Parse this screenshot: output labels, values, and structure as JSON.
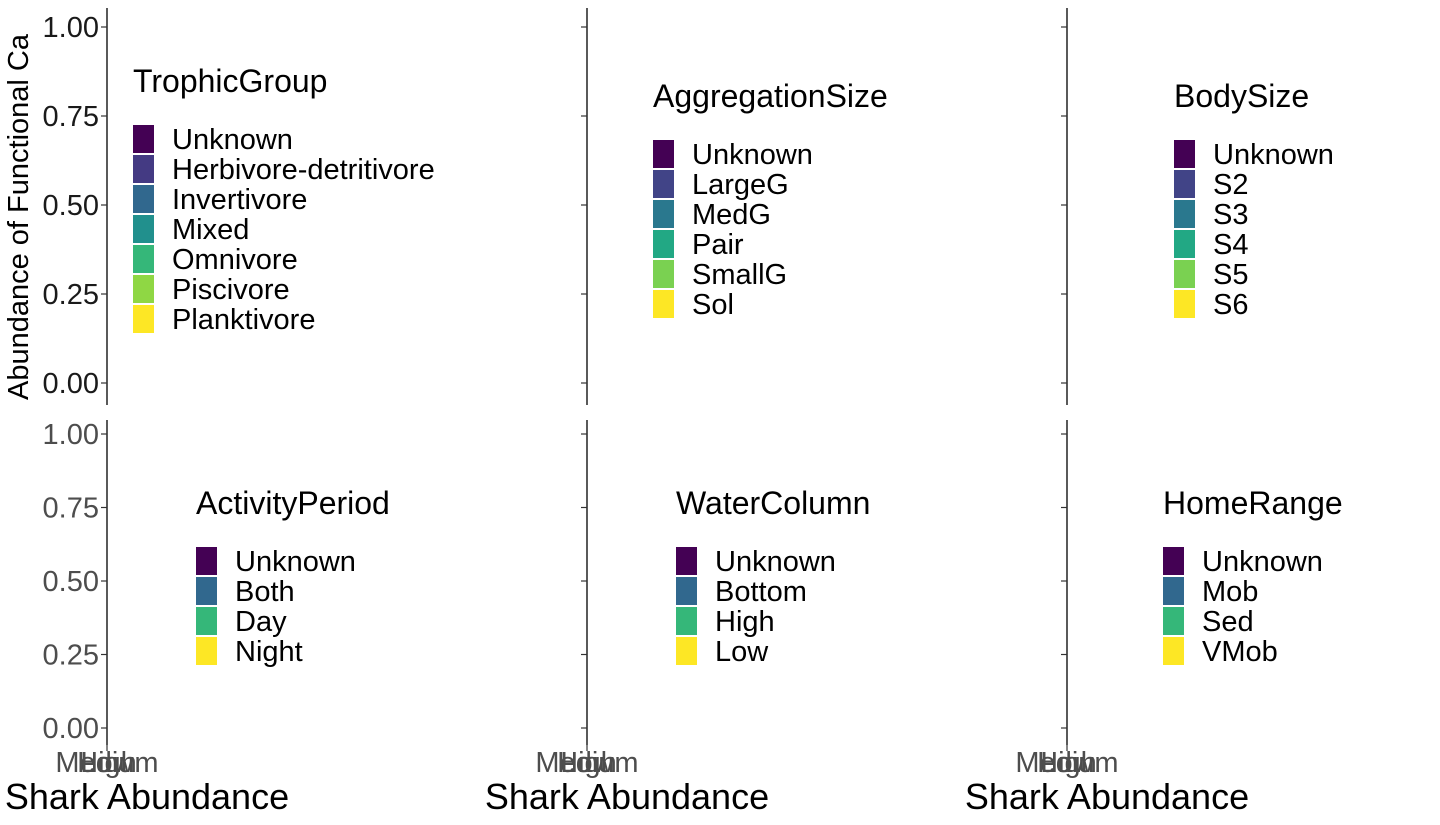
{
  "chart_data": {
    "type": "bar",
    "layout": "facet-grid 2 rows x 3 columns, stacked proportion bars (no bars visible)",
    "ylabel": "Abundance of Functional Ca",
    "y_ticks": [
      "0.00",
      "0.25",
      "0.50",
      "0.75",
      "1.00"
    ],
    "ylim": [
      0,
      1
    ],
    "x_categories": [
      "Medium",
      "High",
      "Low"
    ],
    "xlabel": "Shark Abundance",
    "panels": [
      {
        "legend_title": "TrophicGroup",
        "legend": [
          {
            "label": "Unknown",
            "color": "#440154"
          },
          {
            "label": "Herbivore-detritivore",
            "color": "#443a83"
          },
          {
            "label": "Invertivore",
            "color": "#31688e"
          },
          {
            "label": "Mixed",
            "color": "#21908d"
          },
          {
            "label": "Omnivore",
            "color": "#35b779"
          },
          {
            "label": "Piscivore",
            "color": "#8fd744"
          },
          {
            "label": "Planktivore",
            "color": "#fde725"
          }
        ]
      },
      {
        "legend_title": "AggregationSize",
        "legend": [
          {
            "label": "Unknown",
            "color": "#440154"
          },
          {
            "label": "LargeG",
            "color": "#414487"
          },
          {
            "label": "MedG",
            "color": "#2a788e"
          },
          {
            "label": "Pair",
            "color": "#22a884"
          },
          {
            "label": "SmallG",
            "color": "#7ad151"
          },
          {
            "label": "Sol",
            "color": "#fde725"
          }
        ]
      },
      {
        "legend_title": "BodySize",
        "legend": [
          {
            "label": "Unknown",
            "color": "#440154"
          },
          {
            "label": "S2",
            "color": "#414487"
          },
          {
            "label": "S3",
            "color": "#2a788e"
          },
          {
            "label": "S4",
            "color": "#22a884"
          },
          {
            "label": "S5",
            "color": "#7ad151"
          },
          {
            "label": "S6",
            "color": "#fde725"
          }
        ]
      },
      {
        "legend_title": "ActivityPeriod",
        "legend": [
          {
            "label": "Unknown",
            "color": "#440154"
          },
          {
            "label": "Both",
            "color": "#31688e"
          },
          {
            "label": "Day",
            "color": "#35b779"
          },
          {
            "label": "Night",
            "color": "#fde725"
          }
        ]
      },
      {
        "legend_title": "WaterColumn",
        "legend": [
          {
            "label": "Unknown",
            "color": "#440154"
          },
          {
            "label": "Bottom",
            "color": "#31688e"
          },
          {
            "label": "High",
            "color": "#35b779"
          },
          {
            "label": "Low",
            "color": "#fde725"
          }
        ]
      },
      {
        "legend_title": "HomeRange",
        "legend": [
          {
            "label": "Unknown",
            "color": "#440154"
          },
          {
            "label": "Mob",
            "color": "#31688e"
          },
          {
            "label": "Sed",
            "color": "#35b779"
          },
          {
            "label": "VMob",
            "color": "#fde725"
          }
        ]
      }
    ]
  }
}
